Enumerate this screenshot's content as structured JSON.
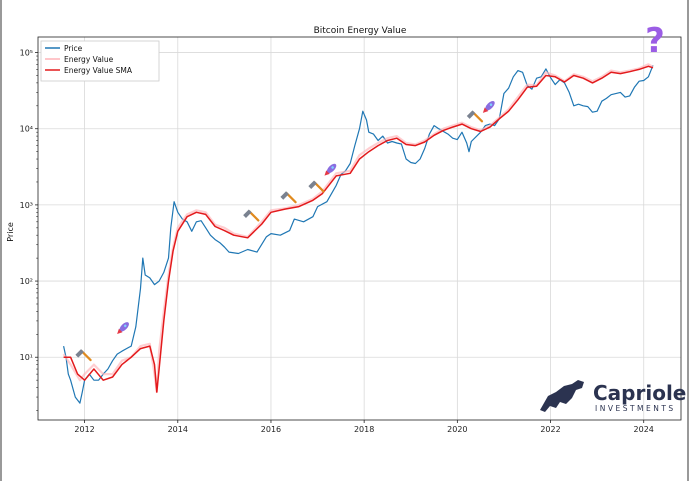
{
  "chart_data": {
    "type": "line",
    "title": "Bitcoin Energy Value",
    "xlabel": "",
    "ylabel": "Price",
    "yscale": "log",
    "xlim": [
      2011.0,
      2024.8
    ],
    "ylim": [
      1.5,
      160000
    ],
    "x_ticks": [
      2012,
      2014,
      2016,
      2018,
      2020,
      2022,
      2024
    ],
    "x_tick_labels": [
      "2012",
      "2014",
      "2016",
      "2018",
      "2020",
      "2022",
      "2024"
    ],
    "y_ticks": [
      10,
      100,
      1000,
      10000,
      100000
    ],
    "y_tick_labels": [
      "10¹",
      "10²",
      "10³",
      "10⁴",
      "10⁵"
    ],
    "grid": true,
    "legend_position": "top-left",
    "series": [
      {
        "name": "Price",
        "color": "#1f77b4",
        "x": [
          2011.55,
          2011.6,
          2011.65,
          2011.7,
          2011.8,
          2011.9,
          2011.95,
          2012.0,
          2012.1,
          2012.2,
          2012.3,
          2012.4,
          2012.5,
          2012.6,
          2012.7,
          2012.8,
          2012.9,
          2013.0,
          2013.1,
          2013.2,
          2013.25,
          2013.3,
          2013.4,
          2013.5,
          2013.6,
          2013.7,
          2013.8,
          2013.85,
          2013.92,
          2014.0,
          2014.1,
          2014.2,
          2014.3,
          2014.4,
          2014.5,
          2014.6,
          2014.7,
          2014.8,
          2014.9,
          2015.0,
          2015.1,
          2015.3,
          2015.5,
          2015.7,
          2015.9,
          2016.0,
          2016.2,
          2016.4,
          2016.5,
          2016.7,
          2016.9,
          2017.0,
          2017.2,
          2017.4,
          2017.5,
          2017.6,
          2017.7,
          2017.8,
          2017.9,
          2017.97,
          2018.05,
          2018.1,
          2018.2,
          2018.3,
          2018.4,
          2018.5,
          2018.6,
          2018.7,
          2018.8,
          2018.9,
          2019.0,
          2019.1,
          2019.2,
          2019.3,
          2019.4,
          2019.5,
          2019.6,
          2019.8,
          2019.9,
          2020.0,
          2020.1,
          2020.2,
          2020.25,
          2020.3,
          2020.5,
          2020.6,
          2020.7,
          2020.8,
          2020.9,
          2021.0,
          2021.1,
          2021.2,
          2021.3,
          2021.4,
          2021.5,
          2021.6,
          2021.7,
          2021.8,
          2021.9,
          2022.0,
          2022.1,
          2022.2,
          2022.3,
          2022.4,
          2022.5,
          2022.6,
          2022.7,
          2022.8,
          2022.9,
          2023.0,
          2023.1,
          2023.2,
          2023.3,
          2023.5,
          2023.6,
          2023.7,
          2023.8,
          2023.9,
          2024.0,
          2024.1,
          2024.2
        ],
        "y": [
          14,
          10,
          6,
          5,
          3,
          2.5,
          3.5,
          5,
          6,
          5,
          5,
          6,
          7,
          9,
          11,
          12,
          13,
          14,
          25,
          80,
          200,
          120,
          110,
          90,
          100,
          130,
          200,
          500,
          1100,
          800,
          650,
          600,
          450,
          600,
          620,
          500,
          400,
          350,
          320,
          280,
          240,
          230,
          260,
          240,
          380,
          420,
          400,
          460,
          650,
          600,
          700,
          950,
          1100,
          1800,
          2500,
          2800,
          3500,
          6000,
          10000,
          17000,
          13000,
          9000,
          8500,
          7000,
          8000,
          6500,
          6800,
          6500,
          6300,
          4000,
          3600,
          3500,
          4000,
          5500,
          8500,
          11000,
          10000,
          8500,
          7500,
          7200,
          9000,
          6500,
          5000,
          6800,
          9000,
          11000,
          11500,
          11000,
          13500,
          29000,
          34000,
          48000,
          58000,
          55000,
          37000,
          33000,
          46000,
          48000,
          61000,
          47000,
          38000,
          44000,
          40000,
          30000,
          20000,
          21000,
          20000,
          19500,
          16500,
          17000,
          23000,
          25000,
          28000,
          30000,
          26000,
          27000,
          35000,
          42000,
          43000,
          48000,
          68000
        ]
      },
      {
        "name": "Energy Value",
        "color": "#ffb3b8",
        "x": [
          2011.55,
          2011.7,
          2011.9,
          2012.0,
          2012.2,
          2012.4,
          2012.6,
          2012.8,
          2013.0,
          2013.2,
          2013.4,
          2013.5,
          2013.55,
          2013.6,
          2013.7,
          2013.8,
          2013.9,
          2014.0,
          2014.2,
          2014.4,
          2014.6,
          2014.8,
          2015.0,
          2015.2,
          2015.5,
          2015.8,
          2016.0,
          2016.3,
          2016.6,
          2016.9,
          2017.1,
          2017.4,
          2017.7,
          2017.9,
          2018.1,
          2018.3,
          2018.5,
          2018.7,
          2018.9,
          2019.1,
          2019.3,
          2019.5,
          2019.7,
          2019.9,
          2020.1,
          2020.3,
          2020.5,
          2020.7,
          2020.9,
          2021.1,
          2021.3,
          2021.5,
          2021.7,
          2021.9,
          2022.1,
          2022.3,
          2022.5,
          2022.7,
          2022.9,
          2023.1,
          2023.3,
          2023.5,
          2023.7,
          2023.9,
          2024.1,
          2024.2
        ],
        "y": [
          11,
          8,
          5,
          6,
          8,
          6,
          6,
          9,
          10,
          14,
          15,
          6,
          3.5,
          12,
          40,
          120,
          280,
          500,
          750,
          850,
          800,
          550,
          500,
          420,
          380,
          600,
          850,
          900,
          1000,
          1200,
          1500,
          2600,
          2800,
          4500,
          5500,
          6500,
          7500,
          8000,
          6500,
          6200,
          7000,
          8500,
          10000,
          11000,
          12000,
          10500,
          9500,
          11000,
          14000,
          18000,
          26000,
          38000,
          37000,
          55000,
          50000,
          42000,
          52000,
          48000,
          42000,
          48000,
          58000,
          55000,
          58000,
          62000,
          70000,
          65000
        ]
      },
      {
        "name": "Energy Value SMA",
        "color": "#e31a1c",
        "x": [
          2011.55,
          2011.7,
          2011.85,
          2012.0,
          2012.2,
          2012.4,
          2012.6,
          2012.8,
          2013.0,
          2013.2,
          2013.4,
          2013.5,
          2013.55,
          2013.6,
          2013.7,
          2013.8,
          2013.9,
          2014.0,
          2014.2,
          2014.4,
          2014.6,
          2014.8,
          2015.0,
          2015.2,
          2015.5,
          2015.8,
          2016.0,
          2016.3,
          2016.6,
          2016.9,
          2017.1,
          2017.4,
          2017.7,
          2017.9,
          2018.1,
          2018.3,
          2018.5,
          2018.7,
          2018.9,
          2019.1,
          2019.3,
          2019.5,
          2019.7,
          2019.9,
          2020.1,
          2020.3,
          2020.5,
          2020.7,
          2020.9,
          2021.1,
          2021.3,
          2021.5,
          2021.7,
          2021.9,
          2022.1,
          2022.3,
          2022.5,
          2022.7,
          2022.9,
          2023.1,
          2023.3,
          2023.5,
          2023.7,
          2023.9,
          2024.1,
          2024.2
        ],
        "y": [
          10,
          10,
          6,
          5,
          7,
          5,
          5.5,
          8,
          10,
          13,
          14,
          8,
          3.5,
          7,
          30,
          100,
          250,
          450,
          700,
          800,
          750,
          520,
          460,
          400,
          370,
          560,
          800,
          880,
          950,
          1150,
          1400,
          2400,
          2600,
          4000,
          5000,
          6000,
          7000,
          7500,
          6200,
          6000,
          6700,
          8200,
          9500,
          10500,
          11500,
          10000,
          9200,
          10500,
          13500,
          17000,
          24000,
          35000,
          36000,
          50000,
          48000,
          41000,
          50000,
          46000,
          40000,
          46000,
          55000,
          53000,
          56000,
          60000,
          66000,
          63000
        ]
      }
    ],
    "annotations": {
      "hammer_markers": [
        {
          "x": 2012.0,
          "y": 11
        },
        {
          "x": 2015.6,
          "y": 750
        },
        {
          "x": 2016.4,
          "y": 1300
        },
        {
          "x": 2017.0,
          "y": 1800
        },
        {
          "x": 2020.4,
          "y": 15000
        }
      ],
      "rocket_markers": [
        {
          "x": 2012.85,
          "y": 25
        },
        {
          "x": 2017.3,
          "y": 3000
        },
        {
          "x": 2020.7,
          "y": 20000
        }
      ],
      "question_mark": {
        "x": 2024.2,
        "y": 100000
      }
    }
  },
  "question_text": "?",
  "brand": {
    "name": "Capriole",
    "subtitle": "INVESTMENTS",
    "color": "#2b3350",
    "question_color": "#9b5de5"
  }
}
